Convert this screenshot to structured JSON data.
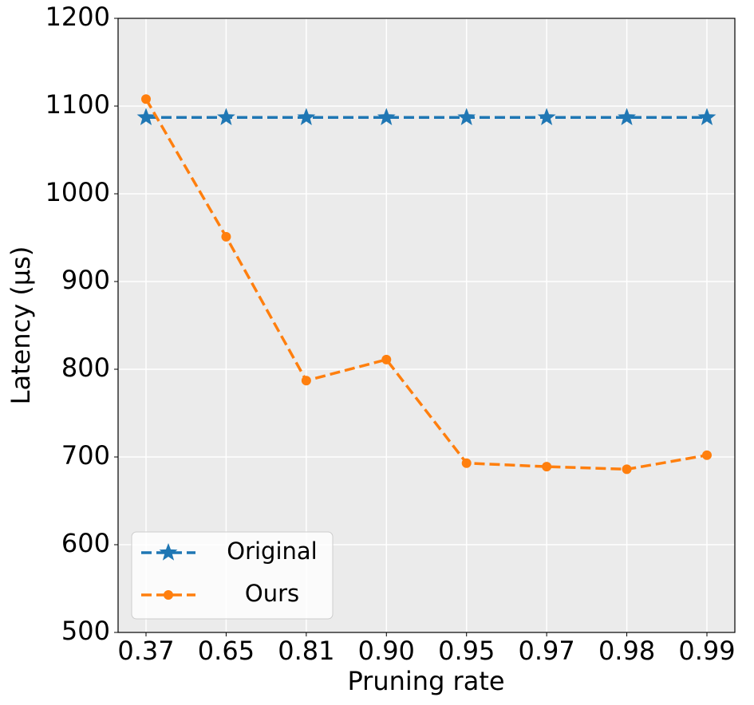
{
  "chart_data": {
    "type": "line",
    "xlabel": "Pruning rate",
    "ylabel": "Latency (μs)",
    "categories": [
      "0.37",
      "0.65",
      "0.81",
      "0.90",
      "0.95",
      "0.97",
      "0.98",
      "0.99"
    ],
    "series": [
      {
        "name": "Original",
        "color": "#1f77b4",
        "marker": "star",
        "values": [
          1087,
          1087,
          1087,
          1087,
          1087,
          1087,
          1087,
          1087
        ]
      },
      {
        "name": "Ours",
        "color": "#ff7f0e",
        "marker": "circle",
        "values": [
          1108,
          951,
          787,
          811,
          693,
          689,
          686,
          702
        ]
      }
    ],
    "ylim": [
      500,
      1200
    ],
    "yticks": [
      500,
      600,
      700,
      800,
      900,
      1000,
      1100,
      1200
    ],
    "grid": true,
    "legend": "lower left"
  }
}
